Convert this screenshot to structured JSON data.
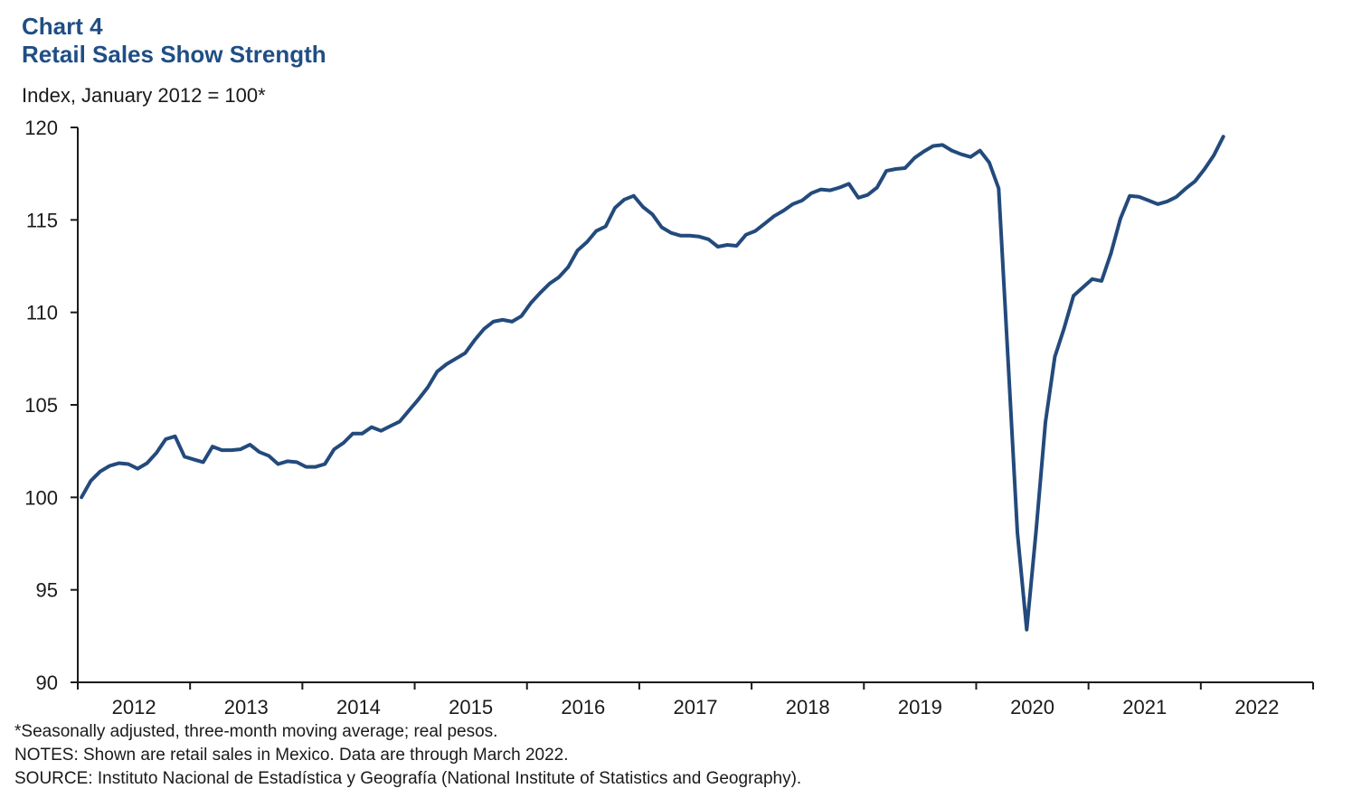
{
  "header": {
    "chart_number": "Chart 4",
    "title": "Retail Sales Show Strength",
    "unit_label": "Index, January 2012 = 100*"
  },
  "footnotes": {
    "asterisk_note": "*Seasonally adjusted,  three-month  moving average; real pesos.",
    "notes": "NOTES: Shown are retail sales in Mexico. Data are through  March 2022.",
    "source": "SOURCE: Instituto  Nacional de Estadística y Geografía (National Institute of Statistics and Geography)."
  },
  "colors": {
    "title": "#1f4e85",
    "line": "#234a7c",
    "axis": "#1a1a1a"
  },
  "chart_data": {
    "type": "line",
    "title": "Retail Sales Show Strength",
    "xlabel": "",
    "ylabel": "Index, January 2012 = 100*",
    "ylim": [
      90,
      120
    ],
    "yticks": [
      120,
      115,
      110,
      105,
      100,
      95,
      90
    ],
    "xticks": [
      "2012",
      "2013",
      "2014",
      "2015",
      "2016",
      "2017",
      "2018",
      "2019",
      "2020",
      "2021",
      "2022"
    ],
    "x_start": "January 2012",
    "x_end": "March 2022",
    "frequency": "monthly",
    "grid": false,
    "legend": "none",
    "series": [
      {
        "name": "Retail sales index",
        "values": [
          100.0,
          100.9,
          101.4,
          101.7,
          101.85,
          101.8,
          101.55,
          101.85,
          102.4,
          103.15,
          103.3,
          102.2,
          102.05,
          101.9,
          102.75,
          102.55,
          102.55,
          102.6,
          102.85,
          102.45,
          102.25,
          101.8,
          101.95,
          101.9,
          101.65,
          101.65,
          101.8,
          102.6,
          102.95,
          103.45,
          103.45,
          103.8,
          103.6,
          103.85,
          104.1,
          104.7,
          105.3,
          105.95,
          106.8,
          107.2,
          107.5,
          107.8,
          108.5,
          109.1,
          109.5,
          109.6,
          109.5,
          109.8,
          110.5,
          111.05,
          111.55,
          111.9,
          112.45,
          113.35,
          113.8,
          114.4,
          114.65,
          115.65,
          116.1,
          116.3,
          115.7,
          115.3,
          114.6,
          114.3,
          114.15,
          114.15,
          114.1,
          113.95,
          113.55,
          113.65,
          113.6,
          114.2,
          114.4,
          114.8,
          115.2,
          115.5,
          115.85,
          116.05,
          116.45,
          116.65,
          116.6,
          116.75,
          116.95,
          116.2,
          116.35,
          116.75,
          117.65,
          117.75,
          117.8,
          118.35,
          118.7,
          119.0,
          119.05,
          118.75,
          118.55,
          118.4,
          118.75,
          118.1,
          116.7,
          107.5,
          98.1,
          92.85,
          98.2,
          104.05,
          107.6,
          109.15,
          110.9,
          111.35,
          111.8,
          111.7,
          113.2,
          115.05,
          116.3,
          116.25,
          116.05,
          115.85,
          116.0,
          116.25,
          116.7,
          117.1,
          117.75,
          118.5,
          119.5
        ]
      }
    ]
  }
}
